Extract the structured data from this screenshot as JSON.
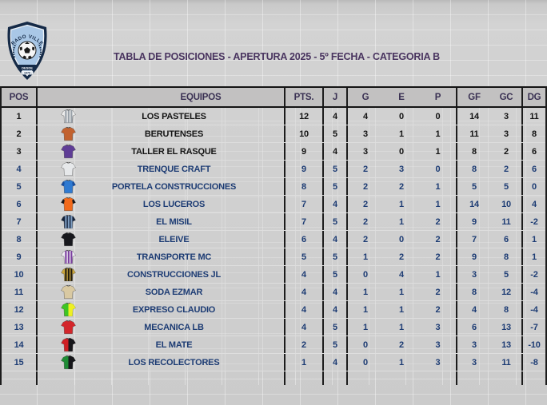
{
  "title": "TABLA DE POSICIONES - APERTURA 2025 - 5º FECHA - CATEGORIA B",
  "logo": {
    "club_name": "CONRADO VILLEGAS",
    "since_label": "DESDE",
    "since_year": "· 1970 ·",
    "shield_border": "#152a47",
    "shield_field": "#a9c7e6",
    "band_color": "#152a47"
  },
  "colors": {
    "title_text": "#4a3560",
    "header_text": "#3a3153",
    "top_rows_text": "#141414",
    "rows_text": "#1d3c74",
    "table_border": "#1c1c1c",
    "header_bg": "#c2c1c1"
  },
  "table": {
    "columns": [
      "POS",
      "EQUIPOS",
      "PTS.",
      "J",
      "G",
      "E",
      "P",
      "GF",
      "GC",
      "DG"
    ],
    "rows": [
      {
        "pos": "1",
        "team": "LOS PASTELES",
        "pts": "12",
        "j": "4",
        "g": "4",
        "e": "0",
        "p": "0",
        "gf": "14",
        "gc": "3",
        "dg": "11",
        "group": "top",
        "shirt": {
          "style": "stripes",
          "primary": "#ececec",
          "secondary": "#98a0a8"
        }
      },
      {
        "pos": "2",
        "team": "BERUTENSES",
        "pts": "10",
        "j": "5",
        "g": "3",
        "e": "1",
        "p": "1",
        "gf": "11",
        "gc": "3",
        "dg": "8",
        "group": "top",
        "shirt": {
          "style": "plain",
          "primary": "#c2622f",
          "secondary": "#8a4520"
        }
      },
      {
        "pos": "3",
        "team": "TALLER EL RASQUE",
        "pts": "9",
        "j": "4",
        "g": "3",
        "e": "0",
        "p": "1",
        "gf": "8",
        "gc": "2",
        "dg": "6",
        "group": "top",
        "shirt": {
          "style": "plain",
          "primary": "#5f3d96",
          "secondary": "#3f2766"
        }
      },
      {
        "pos": "4",
        "team": "TRENQUE CRAFT",
        "pts": "9",
        "j": "5",
        "g": "2",
        "e": "3",
        "p": "0",
        "gf": "8",
        "gc": "2",
        "dg": "6",
        "group": "rest",
        "shirt": {
          "style": "plain",
          "primary": "#e6e8ea",
          "secondary": "#4a5668"
        }
      },
      {
        "pos": "5",
        "team": "PORTELA CONSTRUCCIONES",
        "pts": "8",
        "j": "5",
        "g": "2",
        "e": "2",
        "p": "1",
        "gf": "5",
        "gc": "5",
        "dg": "0",
        "group": "rest",
        "shirt": {
          "style": "sleeves",
          "primary": "#2f7ad1",
          "secondary": "#1b4f9e"
        }
      },
      {
        "pos": "6",
        "team": "LOS LUCEROS",
        "pts": "7",
        "j": "4",
        "g": "2",
        "e": "1",
        "p": "1",
        "gf": "14",
        "gc": "10",
        "dg": "4",
        "group": "rest",
        "shirt": {
          "style": "sleeves",
          "primary": "#f26a1b",
          "secondary": "#17181c"
        }
      },
      {
        "pos": "7",
        "team": "EL MISIL",
        "pts": "7",
        "j": "5",
        "g": "2",
        "e": "1",
        "p": "2",
        "gf": "9",
        "gc": "11",
        "dg": "-2",
        "group": "rest",
        "shirt": {
          "style": "stripes",
          "primary": "#14233c",
          "secondary": "#7d9cc0"
        }
      },
      {
        "pos": "8",
        "team": "ELEIVE",
        "pts": "6",
        "j": "4",
        "g": "2",
        "e": "0",
        "p": "2",
        "gf": "7",
        "gc": "6",
        "dg": "1",
        "group": "rest",
        "shirt": {
          "style": "plain",
          "primary": "#17181d",
          "secondary": "#2e3038"
        }
      },
      {
        "pos": "9",
        "team": "TRANSPORTE MC",
        "pts": "5",
        "j": "5",
        "g": "1",
        "e": "2",
        "p": "2",
        "gf": "9",
        "gc": "8",
        "dg": "1",
        "group": "rest",
        "shirt": {
          "style": "stripes",
          "primary": "#efedf2",
          "secondary": "#7b3fa0"
        }
      },
      {
        "pos": "10",
        "team": "CONSTRUCCIONES JL",
        "pts": "4",
        "j": "5",
        "g": "0",
        "e": "4",
        "p": "1",
        "gf": "3",
        "gc": "5",
        "dg": "-2",
        "group": "rest",
        "shirt": {
          "style": "stripes",
          "primary": "#caa63d",
          "secondary": "#211c10"
        }
      },
      {
        "pos": "11",
        "team": "SODA EZMAR",
        "pts": "4",
        "j": "4",
        "g": "1",
        "e": "1",
        "p": "2",
        "gf": "8",
        "gc": "12",
        "dg": "-4",
        "group": "rest",
        "shirt": {
          "style": "plain",
          "primary": "#d9c9a2",
          "secondary": "#9c854f"
        }
      },
      {
        "pos": "12",
        "team": "EXPRESO CLAUDIO",
        "pts": "4",
        "j": "4",
        "g": "1",
        "e": "1",
        "p": "2",
        "gf": "4",
        "gc": "8",
        "dg": "-4",
        "group": "rest",
        "shirt": {
          "style": "half",
          "primary": "#3ec523",
          "secondary": "#eef024"
        }
      },
      {
        "pos": "13",
        "team": "MECANICA LB",
        "pts": "4",
        "j": "5",
        "g": "1",
        "e": "1",
        "p": "3",
        "gf": "6",
        "gc": "13",
        "dg": "-7",
        "group": "rest",
        "shirt": {
          "style": "plain",
          "primary": "#d3262b",
          "secondary": "#8f1b1e"
        }
      },
      {
        "pos": "14",
        "team": "EL MATE",
        "pts": "2",
        "j": "5",
        "g": "0",
        "e": "2",
        "p": "3",
        "gf": "3",
        "gc": "13",
        "dg": "-10",
        "group": "rest",
        "shirt": {
          "style": "half",
          "primary": "#cf1f24",
          "secondary": "#17171b"
        }
      },
      {
        "pos": "15",
        "team": "LOS RECOLECTORES",
        "pts": "1",
        "j": "4",
        "g": "0",
        "e": "1",
        "p": "3",
        "gf": "3",
        "gc": "11",
        "dg": "-8",
        "group": "rest",
        "shirt": {
          "style": "half",
          "primary": "#1f8c35",
          "secondary": "#16161a"
        }
      }
    ]
  },
  "chart_data": {
    "type": "table",
    "title": "TABLA DE POSICIONES - APERTURA 2025 - 5º FECHA - CATEGORIA B",
    "columns": [
      "POS",
      "EQUIPOS",
      "PTS.",
      "J",
      "G",
      "E",
      "P",
      "GF",
      "GC",
      "DG"
    ],
    "rows": [
      [
        1,
        "LOS PASTELES",
        12,
        4,
        4,
        0,
        0,
        14,
        3,
        11
      ],
      [
        2,
        "BERUTENSES",
        10,
        5,
        3,
        1,
        1,
        11,
        3,
        8
      ],
      [
        3,
        "TALLER EL RASQUE",
        9,
        4,
        3,
        0,
        1,
        8,
        2,
        6
      ],
      [
        4,
        "TRENQUE CRAFT",
        9,
        5,
        2,
        3,
        0,
        8,
        2,
        6
      ],
      [
        5,
        "PORTELA CONSTRUCCIONES",
        8,
        5,
        2,
        2,
        1,
        5,
        5,
        0
      ],
      [
        6,
        "LOS LUCEROS",
        7,
        4,
        2,
        1,
        1,
        14,
        10,
        4
      ],
      [
        7,
        "EL MISIL",
        7,
        5,
        2,
        1,
        2,
        9,
        11,
        -2
      ],
      [
        8,
        "ELEIVE",
        6,
        4,
        2,
        0,
        2,
        7,
        6,
        1
      ],
      [
        9,
        "TRANSPORTE MC",
        5,
        5,
        1,
        2,
        2,
        9,
        8,
        1
      ],
      [
        10,
        "CONSTRUCCIONES JL",
        4,
        5,
        0,
        4,
        1,
        3,
        5,
        -2
      ],
      [
        11,
        "SODA EZMAR",
        4,
        4,
        1,
        1,
        2,
        8,
        12,
        -4
      ],
      [
        12,
        "EXPRESO CLAUDIO",
        4,
        4,
        1,
        1,
        2,
        4,
        8,
        -4
      ],
      [
        13,
        "MECANICA LB",
        4,
        5,
        1,
        1,
        3,
        6,
        13,
        -7
      ],
      [
        14,
        "EL MATE",
        2,
        5,
        0,
        2,
        3,
        3,
        13,
        -10
      ],
      [
        15,
        "LOS RECOLECTORES",
        1,
        4,
        0,
        1,
        3,
        3,
        11,
        -8
      ]
    ]
  }
}
